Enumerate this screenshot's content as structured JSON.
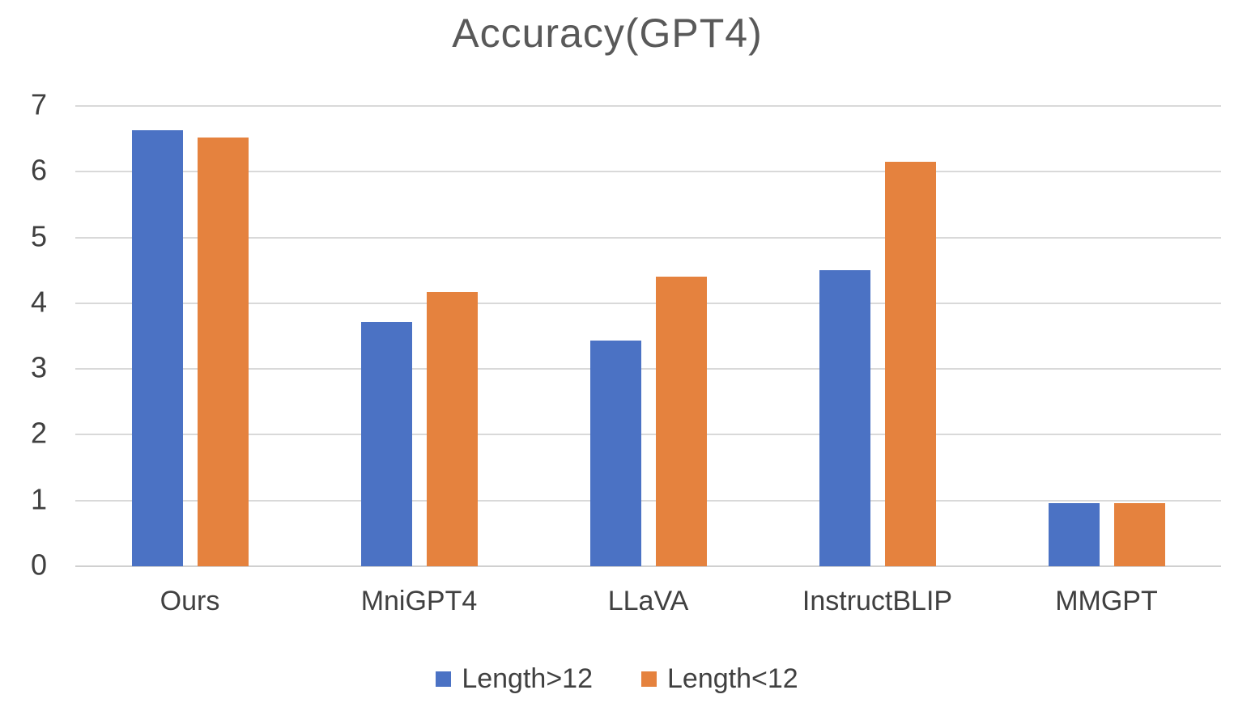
{
  "chart_data": {
    "type": "bar",
    "title": "Accuracy(GPT4)",
    "categories": [
      "Ours",
      "MniGPT4",
      "LLaVA",
      "InstructBLIP",
      "MMGPT"
    ],
    "series": [
      {
        "name": "Length>12",
        "color": "#4b72c4",
        "values": [
          6.63,
          3.71,
          3.43,
          4.5,
          0.96
        ]
      },
      {
        "name": "Length<12",
        "color": "#e5823e",
        "values": [
          6.52,
          4.17,
          4.41,
          6.15,
          0.96
        ]
      }
    ],
    "xlabel": "",
    "ylabel": "",
    "ylim": [
      0,
      7
    ],
    "yticks": [
      0,
      1,
      2,
      3,
      4,
      5,
      6,
      7
    ],
    "grid": true,
    "legend_position": "bottom",
    "gridline_color": "#d9d9d9",
    "title_color": "#595959",
    "tick_label_color": "#404040"
  }
}
